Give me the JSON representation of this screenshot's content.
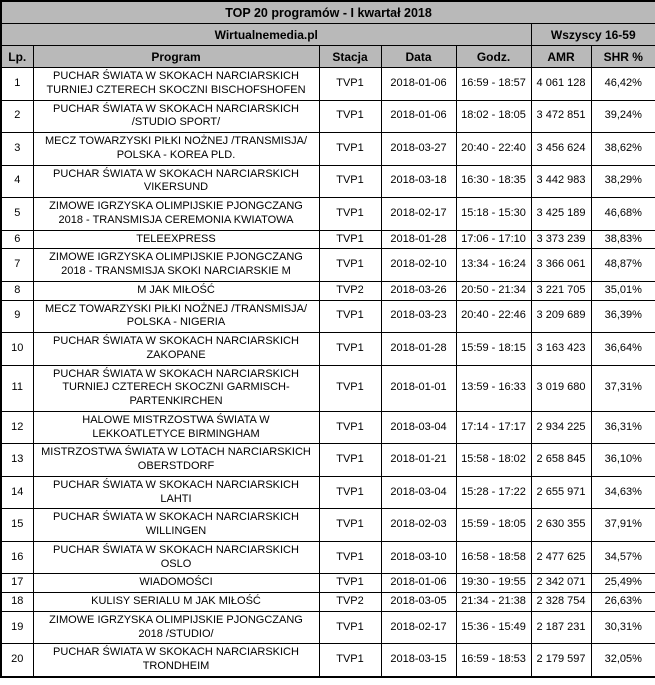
{
  "chart_data": {
    "type": "table",
    "title": "TOP 20 programów - I kwartał 2018",
    "source_label": "Wirtualnemedia.pl",
    "audience_label": "Wszyscy 16-59",
    "columns": [
      "Lp.",
      "Program",
      "Stacja",
      "Data",
      "Godz.",
      "AMR",
      "SHR %"
    ],
    "column_keys": [
      "lp",
      "program",
      "stacja",
      "data",
      "godz",
      "amr",
      "shr"
    ],
    "rows": [
      [
        "1",
        "PUCHAR ŚWIATA W SKOKACH NARCIARSKICH TURNIEJ CZTERECH SKOCZNI BISCHOFSHOFEN",
        "TVP1",
        "2018-01-06",
        "16:59 - 18:57",
        "4 061 128",
        "46,42%"
      ],
      [
        "2",
        "PUCHAR ŚWIATA W SKOKACH NARCIARSKICH /STUDIO SPORT/",
        "TVP1",
        "2018-01-06",
        "18:02 - 18:05",
        "3 472 851",
        "39,24%"
      ],
      [
        "3",
        "MECZ TOWARZYSKI PIŁKI NOŻNEJ /TRANSMISJA/ POLSKA - KOREA PLD.",
        "TVP1",
        "2018-03-27",
        "20:40 - 22:40",
        "3 456 624",
        "38,62%"
      ],
      [
        "4",
        "PUCHAR ŚWIATA W SKOKACH NARCIARSKICH VIKERSUND",
        "TVP1",
        "2018-03-18",
        "16:30 - 18:35",
        "3 442 983",
        "38,29%"
      ],
      [
        "5",
        "ZIMOWE IGRZYSKA OLIMPIJSKIE PJONGCZANG 2018 - TRANSMISJA CEREMONIA KWIATOWA",
        "TVP1",
        "2018-02-17",
        "15:18 - 15:30",
        "3 425 189",
        "46,68%"
      ],
      [
        "6",
        "TELEEXPRESS",
        "TVP1",
        "2018-01-28",
        "17:06 - 17:10",
        "3 373 239",
        "38,83%"
      ],
      [
        "7",
        "ZIMOWE IGRZYSKA OLIMPIJSKIE PJONGCZANG 2018 - TRANSMISJA SKOKI NARCIARSKIE M",
        "TVP1",
        "2018-02-10",
        "13:34 - 16:24",
        "3 366 061",
        "48,87%"
      ],
      [
        "8",
        "M JAK MIŁOŚĆ",
        "TVP2",
        "2018-03-26",
        "20:50 - 21:34",
        "3 221 705",
        "35,01%"
      ],
      [
        "9",
        "MECZ TOWARZYSKI PIŁKI NOŻNEJ /TRANSMISJA/ POLSKA - NIGERIA",
        "TVP1",
        "2018-03-23",
        "20:40 - 22:46",
        "3 209 689",
        "36,39%"
      ],
      [
        "10",
        "PUCHAR ŚWIATA W SKOKACH NARCIARSKICH ZAKOPANE",
        "TVP1",
        "2018-01-28",
        "15:59 - 18:15",
        "3 163 423",
        "36,64%"
      ],
      [
        "11",
        "PUCHAR ŚWIATA W SKOKACH NARCIARSKICH TURNIEJ CZTERECH SKOCZNI GARMISCH-PARTENKIRCHEN",
        "TVP1",
        "2018-01-01",
        "13:59 - 16:33",
        "3 019 680",
        "37,31%"
      ],
      [
        "12",
        "HALOWE MISTRZOSTWA ŚWIATA W LEKKOATLETYCE BIRMINGHAM",
        "TVP1",
        "2018-03-04",
        "17:14 - 17:17",
        "2 934 225",
        "36,31%"
      ],
      [
        "13",
        "MISTRZOSTWA ŚWIATA W LOTACH NARCIARSKICH OBERSTDORF",
        "TVP1",
        "2018-01-21",
        "15:58 - 18:02",
        "2 658 845",
        "36,10%"
      ],
      [
        "14",
        "PUCHAR ŚWIATA W SKOKACH NARCIARSKICH LAHTI",
        "TVP1",
        "2018-03-04",
        "15:28 - 17:22",
        "2 655 971",
        "34,63%"
      ],
      [
        "15",
        "PUCHAR ŚWIATA W SKOKACH NARCIARSKICH WILLINGEN",
        "TVP1",
        "2018-02-03",
        "15:59 - 18:05",
        "2 630 355",
        "37,91%"
      ],
      [
        "16",
        "PUCHAR ŚWIATA W SKOKACH NARCIARSKICH OSLO",
        "TVP1",
        "2018-03-10",
        "16:58 - 18:58",
        "2 477 625",
        "34,57%"
      ],
      [
        "17",
        "WIADOMOŚCI",
        "TVP1",
        "2018-01-06",
        "19:30 - 19:55",
        "2 342 071",
        "25,49%"
      ],
      [
        "18",
        "KULISY SERIALU M JAK MIŁOŚĆ",
        "TVP2",
        "2018-03-05",
        "21:34 - 21:38",
        "2 328 754",
        "26,63%"
      ],
      [
        "19",
        "ZIMOWE IGRZYSKA OLIMPIJSKIE PJONGCZANG 2018 /STUDIO/",
        "TVP1",
        "2018-02-17",
        "15:36 - 15:49",
        "2 187 231",
        "30,31%"
      ],
      [
        "20",
        "PUCHAR ŚWIATA W SKOKACH NARCIARSKICH TRONDHEIM",
        "TVP1",
        "2018-03-15",
        "16:59 - 18:53",
        "2 179 597",
        "32,05%"
      ]
    ]
  },
  "colors": {
    "header_bg": "#b9b9b9",
    "body_bg": "#ffffff",
    "border": "#000000",
    "text": "#000000"
  }
}
